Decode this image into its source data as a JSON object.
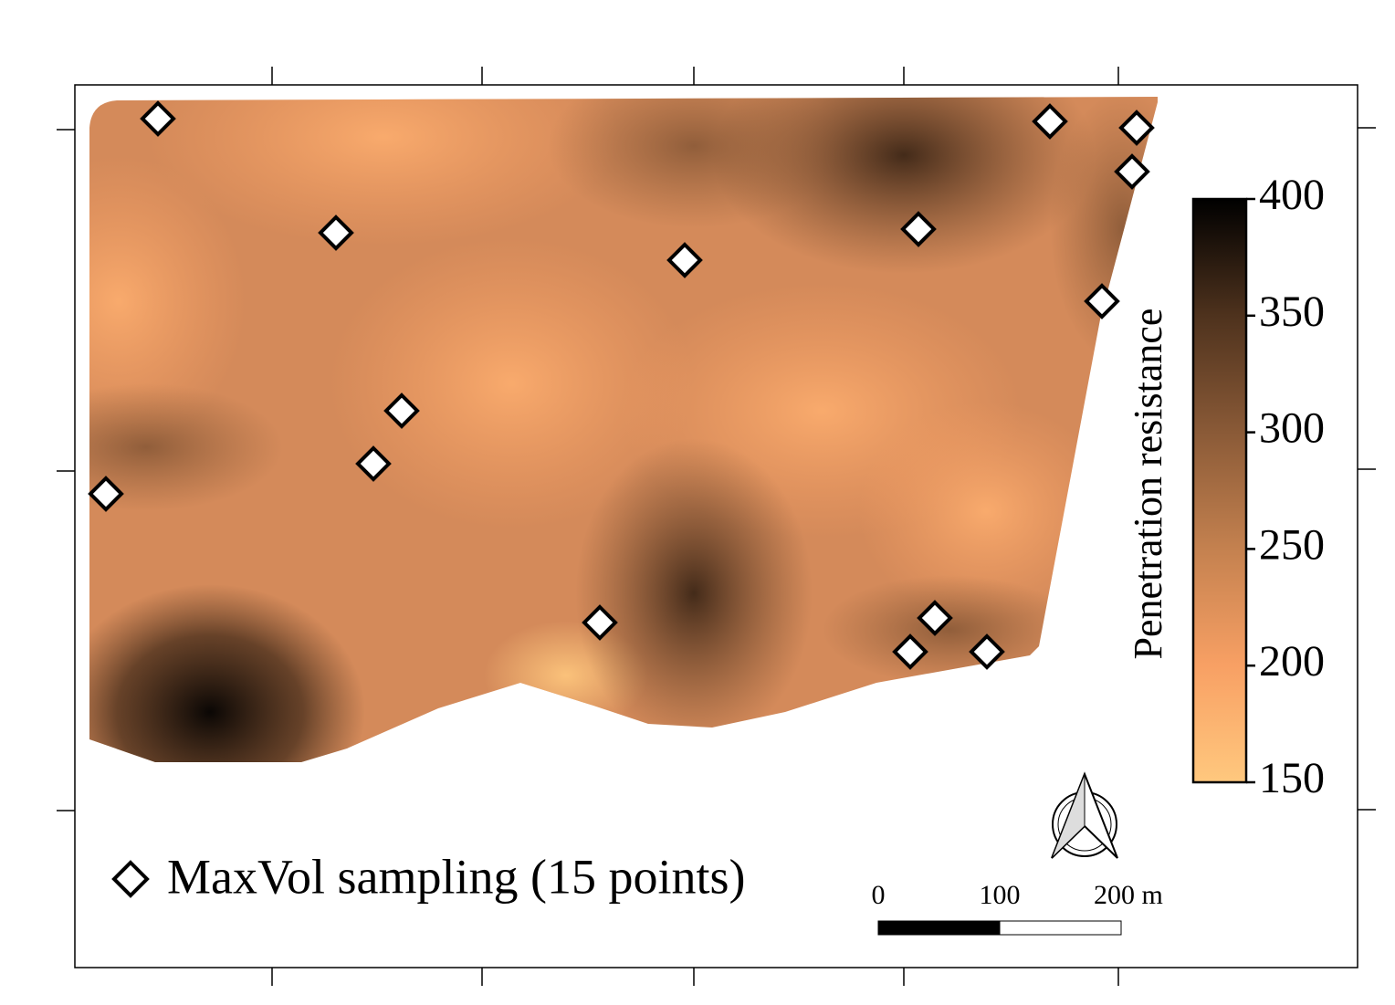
{
  "map": {
    "legend_label": "MaxVol sampling (15 points)",
    "colorbar": {
      "label": "Penetration resistance",
      "lim": [
        150,
        400
      ],
      "ticks": [
        150,
        200,
        250,
        300,
        350,
        400
      ],
      "colors": [
        "#ffc87e",
        "#f8a064",
        "#c4814f",
        "#8a5a37",
        "#4e321d",
        "#000000"
      ]
    },
    "scale_bar": {
      "labels": [
        "0",
        "100",
        "200 m"
      ]
    }
  }
}
